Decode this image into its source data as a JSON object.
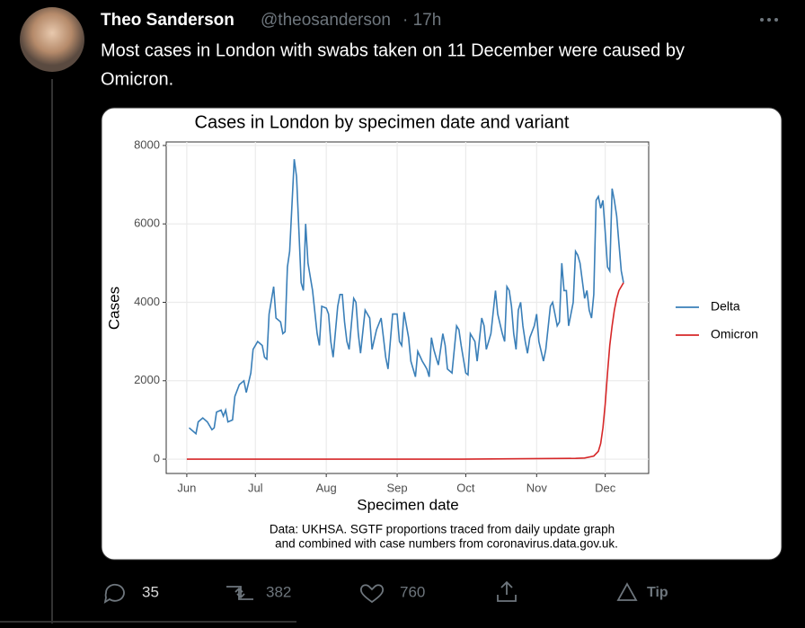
{
  "tweet": {
    "name": "Theo Sanderson",
    "handle": "@theosanderson",
    "time": "· 17h",
    "text": [
      "Most cases in London with swabs taken on 11 December were caused by",
      "Omicron."
    ],
    "replies": "35",
    "retweets": "382",
    "likes": "760",
    "tip": "Tip"
  },
  "chart_data": {
    "type": "line",
    "title": "Cases in London by specimen date and variant",
    "xlabel": "Specimen date",
    "ylabel": "Cases",
    "caption": [
      "Data: UKHSA. SGTF proportions traced from daily update graph",
      "and combined with case numbers from coronavirus.data.gov.uk."
    ],
    "xlim": [
      -9,
      202
    ],
    "xticks": [
      {
        "value": 0,
        "label": "Jun"
      },
      {
        "value": 30,
        "label": "Jul"
      },
      {
        "value": 61,
        "label": "Aug"
      },
      {
        "value": 92,
        "label": "Sep"
      },
      {
        "value": 122,
        "label": "Oct"
      },
      {
        "value": 153,
        "label": "Nov"
      },
      {
        "value": 183,
        "label": "Dec"
      }
    ],
    "ylim": [
      -365,
      8090
    ],
    "yticks": [
      0,
      2000,
      4000,
      6000,
      8000
    ],
    "grid": true,
    "legend": "right",
    "series": [
      {
        "name": "Delta",
        "color": "#3a7fb8",
        "x": [
          1,
          3,
          4,
          5,
          7,
          9,
          11,
          12,
          13,
          15,
          16,
          17,
          18,
          20,
          21,
          23,
          25,
          26,
          28,
          29,
          31,
          33,
          34,
          35,
          36,
          38,
          39,
          41,
          42,
          43,
          44,
          45,
          47,
          48,
          50,
          51,
          52,
          53,
          55,
          57,
          58,
          59,
          61,
          62,
          63,
          64,
          66,
          67,
          68,
          69,
          70,
          71,
          73,
          74,
          75,
          76,
          78,
          80,
          81,
          83,
          85,
          86,
          87,
          88,
          90,
          91,
          92,
          93,
          94,
          95,
          97,
          98,
          100,
          101,
          103,
          104,
          105,
          106,
          107,
          108,
          109,
          110,
          112,
          113,
          114,
          116,
          118,
          119,
          120,
          122,
          123,
          124,
          126,
          127,
          129,
          130,
          131,
          133,
          135,
          136,
          138,
          139,
          140,
          141,
          142,
          143,
          144,
          145,
          146,
          147,
          148,
          149,
          150,
          152,
          153,
          154,
          156,
          157,
          159,
          160,
          161,
          162,
          163,
          164,
          165,
          166,
          167,
          169,
          170,
          171,
          172,
          174,
          175,
          176,
          177,
          178,
          179,
          180,
          181,
          182,
          183,
          184,
          185,
          186,
          187,
          188,
          189,
          190,
          191
        ],
        "values": [
          800,
          700,
          650,
          950,
          1050,
          950,
          750,
          800,
          1200,
          1250,
          1100,
          1250,
          950,
          1000,
          1600,
          1900,
          2000,
          1700,
          2200,
          2800,
          3000,
          2900,
          2600,
          2550,
          3700,
          4400,
          3600,
          3500,
          3200,
          3250,
          4900,
          5300,
          7650,
          7200,
          4500,
          4300,
          6000,
          5000,
          4300,
          3200,
          2900,
          3900,
          3850,
          3700,
          3000,
          2600,
          3900,
          4200,
          4200,
          3500,
          3000,
          2800,
          4100,
          4000,
          3200,
          2700,
          3800,
          3600,
          2800,
          3300,
          3600,
          3100,
          2600,
          2300,
          3700,
          3700,
          3700,
          3000,
          2900,
          3750,
          3100,
          2500,
          2100,
          2750,
          2500,
          2400,
          2300,
          2100,
          3100,
          2800,
          2600,
          2400,
          3200,
          2900,
          2300,
          2200,
          3400,
          3300,
          2900,
          2200,
          2150,
          3200,
          3000,
          2500,
          3600,
          3400,
          2800,
          3200,
          4300,
          3700,
          3200,
          3000,
          4400,
          4300,
          3900,
          3200,
          2800,
          3800,
          4000,
          3400,
          3000,
          2700,
          3100,
          3400,
          3700,
          3000,
          2500,
          2800,
          3900,
          4000,
          3700,
          3400,
          3500,
          5000,
          4300,
          4300,
          3400,
          4000,
          5300,
          5200,
          5000,
          4100,
          4300,
          3800,
          3600,
          4200,
          6600,
          6700,
          6400,
          6600,
          5800,
          4900,
          4800,
          6900,
          6600,
          6200,
          5500,
          4800,
          4500
        ]
      },
      {
        "name": "Omicron",
        "color": "#d62728",
        "x": [
          0,
          60,
          120,
          170,
          174,
          178,
          180,
          181,
          182,
          183,
          184,
          185,
          186,
          187,
          188,
          189,
          190,
          191
        ],
        "values": [
          0,
          0,
          0,
          20,
          30,
          80,
          200,
          400,
          800,
          1400,
          2200,
          2900,
          3400,
          3800,
          4100,
          4300,
          4400,
          4500
        ]
      }
    ]
  }
}
